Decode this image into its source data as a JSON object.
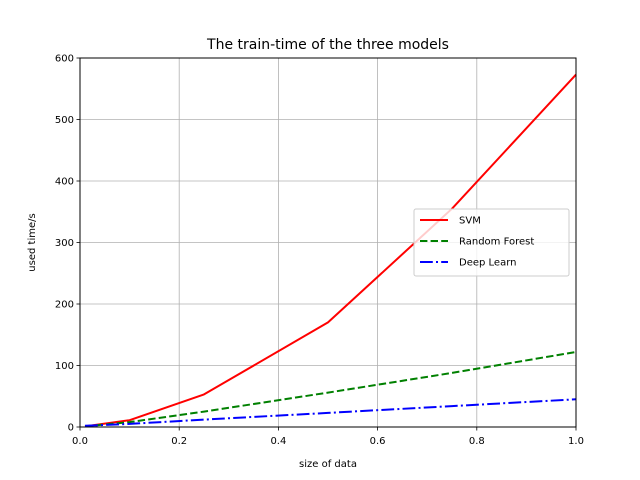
{
  "chart_data": {
    "type": "line",
    "title": "The train-time of the three models",
    "xlabel": "size of data",
    "ylabel": "used time/s",
    "xlim": [
      0.0,
      1.0
    ],
    "ylim": [
      0,
      600
    ],
    "x_ticks": [
      "0.0",
      "0.2",
      "0.4",
      "0.6",
      "0.8",
      "1.0"
    ],
    "y_ticks": [
      "0",
      "100",
      "200",
      "300",
      "400",
      "500",
      "600"
    ],
    "grid": true,
    "legend_position": "center-right",
    "series": [
      {
        "name": "SVM",
        "color": "#ff0000",
        "style": "solid",
        "x": [
          0.01,
          0.1,
          0.25,
          0.5,
          0.75,
          1.0
        ],
        "y": [
          1,
          11,
          53,
          170,
          355,
          573
        ]
      },
      {
        "name": "Random Forest",
        "color": "#008000",
        "style": "dashed",
        "x": [
          0.01,
          0.1,
          0.25,
          0.5,
          0.75,
          1.0
        ],
        "y": [
          1,
          8,
          25,
          56,
          88,
          122
        ]
      },
      {
        "name": "Deep Learn",
        "color": "#0000ff",
        "style": "dashdot",
        "x": [
          0.01,
          0.1,
          0.25,
          0.5,
          0.75,
          1.0
        ],
        "y": [
          2,
          5,
          12,
          23,
          34,
          45
        ]
      }
    ]
  }
}
